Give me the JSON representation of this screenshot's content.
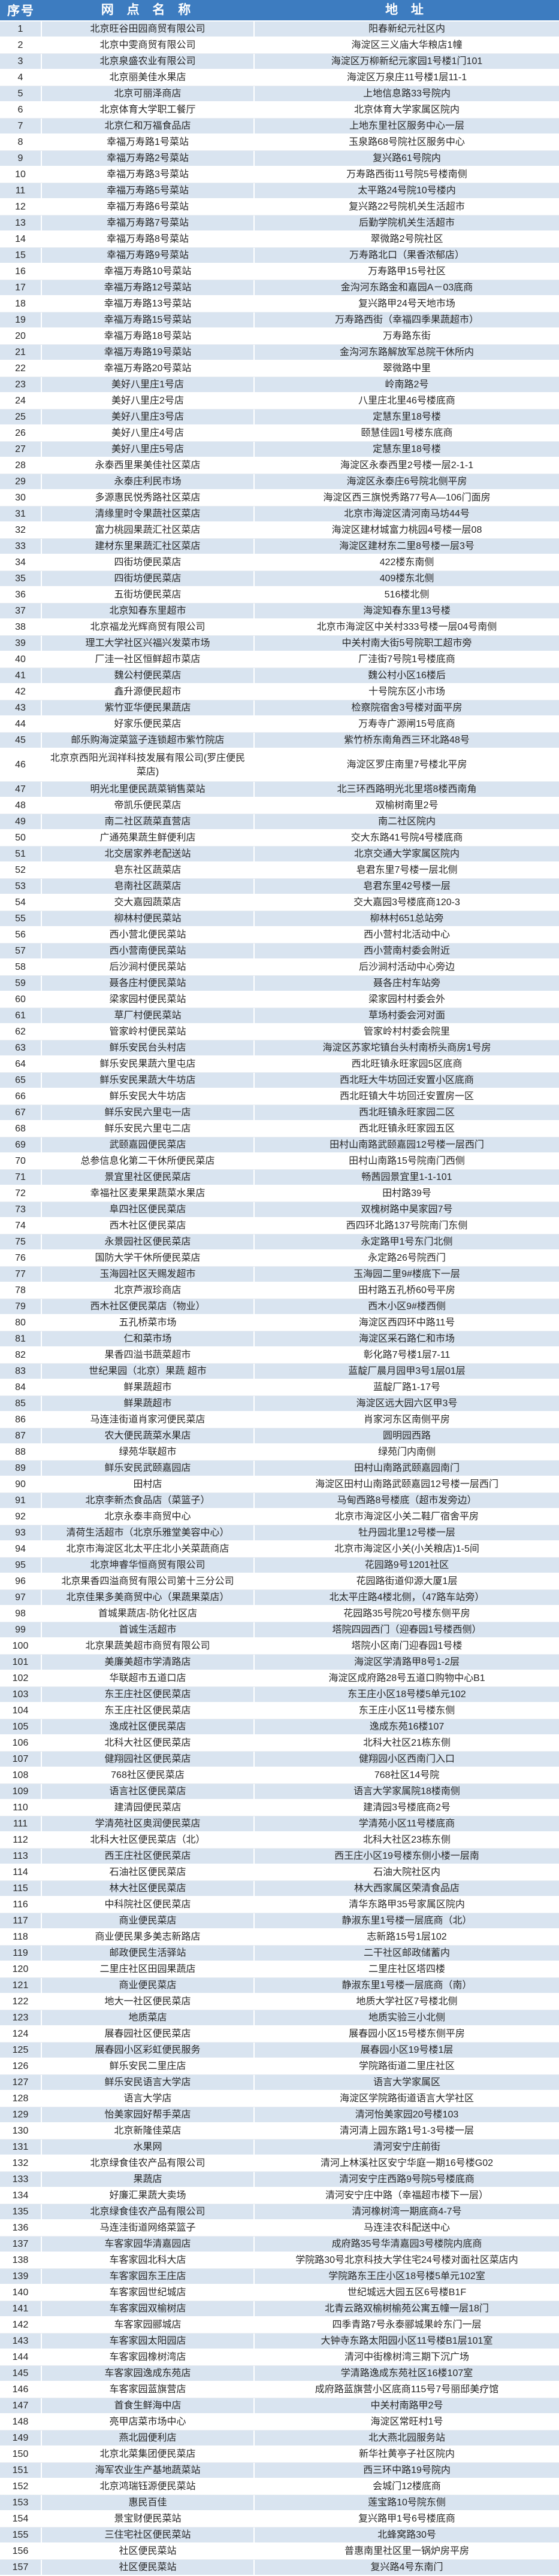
{
  "colors": {
    "header_bg": "#3d7cc0",
    "header_text": "#ffffff",
    "row_alt_bg": "#d9e4f0",
    "row_bg": "#ffffff",
    "cell_text": "#262626"
  },
  "table": {
    "headers": {
      "index": "序号",
      "name": "网 点 名 称",
      "address": "地 址"
    },
    "rows": [
      [
        "1",
        "北京旺谷田园商贸有限公司",
        "阳春新纪元社区内"
      ],
      [
        "2",
        "北京中雯商贸有限公司",
        "海淀区三义庙大华粮店1幢"
      ],
      [
        "3",
        "北京泉盛农业有限公司",
        "海淀区万柳新纪元家园1号楼1门101"
      ],
      [
        "4",
        "北京丽美佳水果店",
        "海淀区万泉庄11号楼1层11-1"
      ],
      [
        "5",
        "北京可丽泽商店",
        "上地信息路33号院内"
      ],
      [
        "6",
        "北京体育大学职工餐厅",
        "北京体育大学家属区院内"
      ],
      [
        "7",
        "北京仁和万福食品店",
        "上地东里社区服务中心一层"
      ],
      [
        "8",
        "幸福万寿路1号菜站",
        "玉泉路68号院社区服务中心"
      ],
      [
        "9",
        "幸福万寿路2号菜站",
        "复兴路61号院内"
      ],
      [
        "10",
        "幸福万寿路3号菜站",
        "万寿路西街11号院5号楼南侧"
      ],
      [
        "11",
        "幸福万寿路5号菜站",
        "太平路24号院10号楼内"
      ],
      [
        "12",
        "幸福万寿路6号菜站",
        "复兴路22号院机关生活超市"
      ],
      [
        "13",
        "幸福万寿路7号菜站",
        "后勤学院机关生活超市"
      ],
      [
        "14",
        "幸福万寿路8号菜站",
        "翠微路2号院社区"
      ],
      [
        "15",
        "幸福万寿路9号菜站",
        "万寿路北口（果香浓郁店）"
      ],
      [
        "16",
        "幸福万寿路10号菜站",
        "万寿路甲15号社区"
      ],
      [
        "17",
        "幸福万寿路12号菜站",
        "金沟河东路金和嘉园A－03底商"
      ],
      [
        "18",
        "幸福万寿路13号菜站",
        "复兴路甲24号天地市场"
      ],
      [
        "19",
        "幸福万寿路15号菜站",
        "万寿路西街（幸福四季果蔬超市）"
      ],
      [
        "20",
        "幸福万寿路18号菜站",
        "万寿路东街"
      ],
      [
        "21",
        "幸福万寿路19号菜站",
        "金沟河东路解放军总院干休所内"
      ],
      [
        "22",
        "幸福万寿路20号菜站",
        "翠微路中里"
      ],
      [
        "23",
        "美好八里庄1号店",
        "岭南路2号"
      ],
      [
        "24",
        "美好八里庄2号店",
        "八里庄北里46号楼底商"
      ],
      [
        "25",
        "美好八里庄3号店",
        "定慧东里18号楼"
      ],
      [
        "26",
        "美好八里庄4号店",
        "颐慧佳园1号楼东底商"
      ],
      [
        "27",
        "美好八里庄5号店",
        "定慧东里18号楼"
      ],
      [
        "28",
        "永泰西里果美佳社区菜店",
        "海淀区永泰西里2号楼一层2-1-1"
      ],
      [
        "29",
        "永泰庄利民市场",
        "海淀区永泰庄6号院北侧平房"
      ],
      [
        "30",
        "多源惠民悦秀路社区菜店",
        "海淀区西三旗悦秀路77号A—106门面房"
      ],
      [
        "31",
        "清缘里时令果蔬社区菜店",
        "北京市海淀区清河南马坊44号"
      ],
      [
        "32",
        "富力桃园果蔬汇社区菜店",
        "海淀区建材城富力桃园4号楼一层08"
      ],
      [
        "33",
        "建材东里果蔬汇社区菜店",
        "海淀区建材东二里8号楼一层3号"
      ],
      [
        "34",
        "四街坊便民菜店",
        "422楼东南侧"
      ],
      [
        "35",
        "四街坊便民菜店",
        "409楼东北侧"
      ],
      [
        "36",
        "五街坊便民菜店",
        "516楼北侧"
      ],
      [
        "37",
        "北京知春东里超市",
        "海淀知春东里13号楼"
      ],
      [
        "38",
        "北京福龙光辉商贸有限公司",
        "北京市海淀区中关村333号楼一层04号南侧"
      ],
      [
        "39",
        "理工大学社区兴福兴发菜市场",
        "中关村南大街5号院职工超市旁"
      ],
      [
        "40",
        "厂洼一社区恒鲜超市菜店",
        "厂洼街7号院1号楼底商"
      ],
      [
        "41",
        "魏公村便民菜店",
        "魏公村小区16楼后"
      ],
      [
        "42",
        "鑫升源便民超市",
        "十号院东区小市场"
      ],
      [
        "43",
        "紫竹亚华便民果蔬店",
        "检察院宿舍3号楼对面平房"
      ],
      [
        "44",
        "好家乐便民菜店",
        "万寿寺广源闸15号底商"
      ],
      [
        "45",
        "邮乐购海淀菜篮子连锁超市紫竹院店",
        "紫竹桥东南角西三环北路48号"
      ],
      [
        "46",
        "北京京西阳光润祥科技发展有限公司(罗庄便民菜店)",
        "海淀区罗庄南里7号楼北平房"
      ],
      [
        "47",
        "明光北里便民蔬菜销售菜站",
        "北三环西路明光北里塔8楼西南角"
      ],
      [
        "48",
        "帝凯乐便民菜店",
        "双榆树南里2号"
      ],
      [
        "49",
        "南二社区蔬菜直营店",
        "南二社区院内"
      ],
      [
        "50",
        "广通苑果蔬生鲜便利店",
        "交大东路41号院4号楼底商"
      ],
      [
        "51",
        "北交居家养老配送站",
        "北京交通大学家属区院内"
      ],
      [
        "52",
        "皂东社区蔬菜店",
        "皂君东里7号楼一层北侧"
      ],
      [
        "53",
        "皂南社区蔬菜店",
        "皂君东里42号楼一层"
      ],
      [
        "54",
        "交大嘉园蔬菜店",
        "交大嘉园3号楼底商120-3"
      ],
      [
        "55",
        "柳林村便民菜站",
        "柳林村651总站旁"
      ],
      [
        "56",
        "西小营北便民菜站",
        "西小营村北活动中心"
      ],
      [
        "57",
        "西小营南便民菜站",
        "西小营南村委会附近"
      ],
      [
        "58",
        "后沙涧村便民菜站",
        "后沙涧村活动中心旁边"
      ],
      [
        "59",
        "聂各庄村便民菜站",
        "聂各庄村车站旁"
      ],
      [
        "60",
        "梁家园村便民菜站",
        "梁家园村村委会外"
      ],
      [
        "61",
        "草厂村便民菜站",
        "草场村委会河对面"
      ],
      [
        "62",
        "管家岭村便民菜站",
        "管家岭村村委会院里"
      ],
      [
        "63",
        "鲜乐安民台头村店",
        "海淀区苏家坨镇台头村南桥头商房1号房"
      ],
      [
        "64",
        "鲜乐安民果蔬六里屯店",
        "西北旺镇永旺家园5区底商"
      ],
      [
        "65",
        "鲜乐安民果蔬大牛坊店",
        "西北旺大牛坊回迁安置小区底商"
      ],
      [
        "66",
        "鲜乐安民大牛坊店",
        "西北旺镇大牛坊回迁安置房一区"
      ],
      [
        "67",
        "鲜乐安民六里屯一店",
        "西北旺镇永旺家园二区"
      ],
      [
        "68",
        "鲜乐安民六里屯二店",
        "西北旺镇永旺家园五区"
      ],
      [
        "69",
        "武颐嘉园便民菜店",
        "田村山南路武颐嘉园12号楼一层西门"
      ],
      [
        "70",
        "总参信息化第二干休所便民菜店",
        "田村山南路15号院南门西侧"
      ],
      [
        "71",
        "景宜里社区便民菜店",
        "畅茜园景宜里1-1-101"
      ],
      [
        "72",
        "幸福社区麦果果蔬菜水果店",
        "田村路39号"
      ],
      [
        "73",
        "阜四社区便民菜店",
        "双槐树路中昊家园7号"
      ],
      [
        "74",
        "西木社区便民菜店",
        "西四环北路137号院南门东侧"
      ],
      [
        "75",
        "永景园社区便民菜店",
        "永定路甲1号东门北侧"
      ],
      [
        "76",
        "国防大学干休所便民菜店",
        "永定路26号院西门"
      ],
      [
        "77",
        "玉海园社区天赐发超市",
        "玉海园二里9#楼底下一层"
      ],
      [
        "78",
        "北京芦淑珍商店",
        "田村路五孔桥60号平房"
      ],
      [
        "79",
        "西木社区便民菜店（物业）",
        "西木小区9#楼西侧"
      ],
      [
        "80",
        "五孔桥菜市场",
        "海淀区西四环中路11号"
      ],
      [
        "81",
        "仁和菜市场",
        "海淀区采石路仁和市场"
      ],
      [
        "82",
        "果香四溢书蔬菜超市",
        "彰化路7号楼1层7-11"
      ],
      [
        "83",
        "世纪果园（北京）果蔬 超市",
        "蓝靛厂晨月园甲3号1层01层"
      ],
      [
        "84",
        "鲜果蔬超市",
        "蓝靛厂路1-17号"
      ],
      [
        "85",
        "鲜果蔬超市",
        "海淀区远大园六区甲3号"
      ],
      [
        "86",
        "马连洼街道肖家河便民菜店",
        "肖家河东区南侧平房"
      ],
      [
        "87",
        "农大便民蔬菜水果店",
        "圆明园西路"
      ],
      [
        "88",
        "绿苑华联超市",
        "绿苑门内南侧"
      ],
      [
        "89",
        "鲜乐安民武颐嘉园店",
        "田村山南路武颐嘉园南门"
      ],
      [
        "90",
        "田村店",
        "海淀区田村山南路武颐嘉园12号楼一层西门"
      ],
      [
        "91",
        "北京李新杰食品店（菜篮子）",
        "马甸西路8号楼底（超市发旁边）"
      ],
      [
        "92",
        "北京永泰丰商贸中心",
        "北京市海淀区小关二鞋厂宿舍平房"
      ],
      [
        "93",
        "清荷生活超市（北京乐雅堂美容中心）",
        "牡丹园北里12号楼一层"
      ],
      [
        "94",
        "北京市海淀区北太平庄北小关菜蔬商店",
        "北京市海淀区小关(小关粮店)1-5间"
      ],
      [
        "95",
        "北京坤睿华恒商贸有限公司",
        "花园路9号1201社区"
      ],
      [
        "96",
        "北京果香四溢商贸有限公司第十三分公司",
        "花园路街道仰源大厦1层"
      ],
      [
        "97",
        "北京佳果多美商贸中心（果蔬果菜店）",
        "北太平庄路4楼北侧，（47路车站旁）"
      ],
      [
        "98",
        "首城果蔬店-防化社区店",
        "花园路35号院20号楼东侧平房"
      ],
      [
        "99",
        "首诚生活超市",
        "塔院四园西门（迎春园1号楼西侧）"
      ],
      [
        "100",
        "北京果蔬美超市商贸有限公司",
        "塔院小区南门迎春园1号楼"
      ],
      [
        "101",
        "美廉美超市学清路店",
        "海淀区学清路甲8号1-2层"
      ],
      [
        "102",
        "华联超市五道口店",
        "海淀区成府路28号五道口购物中心B1"
      ],
      [
        "103",
        "东王庄社区便民菜店",
        "东王庄小区18号楼5单元102"
      ],
      [
        "104",
        "东王庄社区便民菜店",
        "东王庄小区11号楼东侧"
      ],
      [
        "105",
        "逸成社区便民菜店",
        "逸成东苑16楼107"
      ],
      [
        "106",
        "北科大社区便民菜店",
        "北科大社区21栋东侧"
      ],
      [
        "107",
        "健翔园社区便民菜店",
        "健翔园小区西南门入口"
      ],
      [
        "108",
        "768社区便民菜店",
        "768社区14号院"
      ],
      [
        "109",
        "语言社区便民菜店",
        "语言大学家属院18楼南侧"
      ],
      [
        "110",
        "建清园便民菜店",
        "建清园3号楼底商2号"
      ],
      [
        "111",
        "学清苑社区奥润便民菜店",
        "学清苑小区11号楼底商"
      ],
      [
        "112",
        "北科大社区便民菜店（北）",
        "北科大社区23栋东侧"
      ],
      [
        "113",
        "西王庄社区便民菜店",
        "西王庄小区19号楼东侧小楼一层南"
      ],
      [
        "114",
        "石油社区便民菜店",
        "石油大院社区内"
      ],
      [
        "115",
        "林大社区便民菜店",
        "林大西家属区荣清食品店"
      ],
      [
        "116",
        "中科院社区便民菜店",
        "清华东路甲35号家属区院内"
      ],
      [
        "117",
        "商业便民菜店",
        "静淑东里1号楼一层底商（北）"
      ],
      [
        "118",
        "商业便民果多美志新路店",
        "志新路15号1层102"
      ],
      [
        "119",
        "邮政便民生活驿站",
        "二干社区邮政储蓄内"
      ],
      [
        "120",
        "二里庄社区田园果蔬店",
        "二里庄社区塔四楼"
      ],
      [
        "121",
        "商业便民菜店",
        "静淑东里1号楼一层底商（南）"
      ],
      [
        "122",
        "地大一社区便民菜店",
        "地质大学社区7号楼北侧"
      ],
      [
        "123",
        "地质菜店",
        "地质实验三小北侧"
      ],
      [
        "124",
        "展春园社区便民菜店",
        "展春园小区15号楼东侧平房"
      ],
      [
        "125",
        "展春园小区彩虹便民服务",
        "展春园小区19号楼1层"
      ],
      [
        "126",
        "鲜乐安民二里庄店",
        "学院路街道二里庄社区"
      ],
      [
        "127",
        "鲜乐安民语言大学店",
        "语言大学家属区"
      ],
      [
        "128",
        "语言大学店",
        "海淀区学院路街道语言大学社区"
      ],
      [
        "129",
        "怡美家园好帮手菜店",
        "清河怡美家园20号楼103"
      ],
      [
        "130",
        "北京新隆佳菜店",
        "清河清上园东路1号1-3号楼一层"
      ],
      [
        "131",
        "水果网",
        "清河安宁庄前街"
      ],
      [
        "132",
        "北京绿食佳农产品有限公司",
        "清河上林溪社区安宁华庭一期16号楼G02"
      ],
      [
        "133",
        "果蔬店",
        "清河安宁庄西路9号院5号楼底商"
      ],
      [
        "134",
        "好廉汇果蔬大卖场",
        "清河安宁庄中路（幸福超市楼下一层）"
      ],
      [
        "135",
        "北京绿食佳农产品有限公司",
        "清河橡树湾一期底商4-7号"
      ],
      [
        "136",
        "马连洼街道网络菜篮子",
        "马连洼农科配送中心"
      ],
      [
        "137",
        "车客家园华清嘉园店",
        "成府路35号华清嘉园3号楼院内底商"
      ],
      [
        "138",
        "车客家园北科大店",
        "学院路30号北京科技大学住宅24号楼对面社区菜店内"
      ],
      [
        "139",
        "车客家园东王庄店",
        "学院路东王庄小区18号楼5单元102室"
      ],
      [
        "140",
        "车客家园世纪城店",
        "世纪城远大园五区6号楼B1F"
      ],
      [
        "141",
        "车客家园双榆树店",
        "北青云路双榆树榆苑公寓五幢一层18门"
      ],
      [
        "142",
        "车客家园郦城店",
        "四季青路7号永泰郦城果岭东门一层"
      ],
      [
        "143",
        "车客家园太阳园店",
        "大钟寺东路太阳园小区11号楼B1层101室"
      ],
      [
        "144",
        "车客家园橡树湾店",
        "清河中街橡树湾三期下沉广场"
      ],
      [
        "145",
        "车客家园逸成东苑店",
        "学清路逸成东苑社区16楼107室"
      ],
      [
        "146",
        "车客家园蓝旗营店",
        "成府路蓝旗营小区底商115号7号丽邸美疗馆"
      ],
      [
        "147",
        "首食生鲜海中店",
        "中关村南路甲2号"
      ],
      [
        "148",
        "亮甲店菜市场中心",
        "海淀区常旺村1号"
      ],
      [
        "149",
        "燕北园便利店",
        "北大燕北园服务站"
      ],
      [
        "150",
        "北京北菜集团便民菜店",
        "新华社黄亭子社区院内"
      ],
      [
        "151",
        "海军农业生产基地蔬菜站",
        "西三环中路19号院内"
      ],
      [
        "152",
        "北京鸿瑞钰源便民菜站",
        "会城门12楼底商"
      ],
      [
        "153",
        "惠民百佳",
        "莲宝路10号院东侧"
      ],
      [
        "154",
        "景宝财便民菜站",
        "复兴路甲1号6号楼底商"
      ],
      [
        "155",
        "三住宅社区便民菜站",
        "北蜂窝路30号"
      ],
      [
        "156",
        "社区便民菜站",
        "普惠南里社区里一锅炉房平房"
      ],
      [
        "157",
        "社区便民菜站",
        "复兴路4号东南门"
      ]
    ]
  }
}
